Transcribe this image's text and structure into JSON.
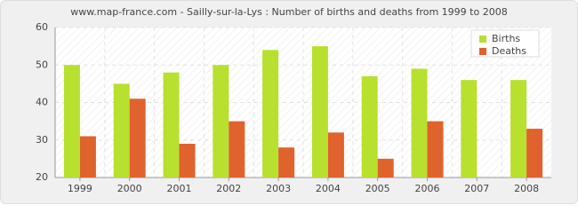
{
  "chart_data": {
    "type": "bar",
    "title": "www.map-france.com - Sailly-sur-la-Lys : Number of births and deaths from 1999 to 2008",
    "categories": [
      "1999",
      "2000",
      "2001",
      "2002",
      "2003",
      "2004",
      "2005",
      "2006",
      "2007",
      "2008"
    ],
    "series": [
      {
        "name": "Births",
        "color": "#b8e02e",
        "values": [
          50,
          45,
          48,
          50,
          54,
          55,
          47,
          49,
          46,
          46
        ]
      },
      {
        "name": "Deaths",
        "color": "#e0622c",
        "values": [
          31,
          41,
          29,
          35,
          28,
          32,
          25,
          35,
          20,
          33
        ]
      }
    ],
    "ylim": [
      20,
      60
    ],
    "yticks": [
      20,
      30,
      40,
      50,
      60
    ],
    "grid": true,
    "legend": "top-right"
  }
}
